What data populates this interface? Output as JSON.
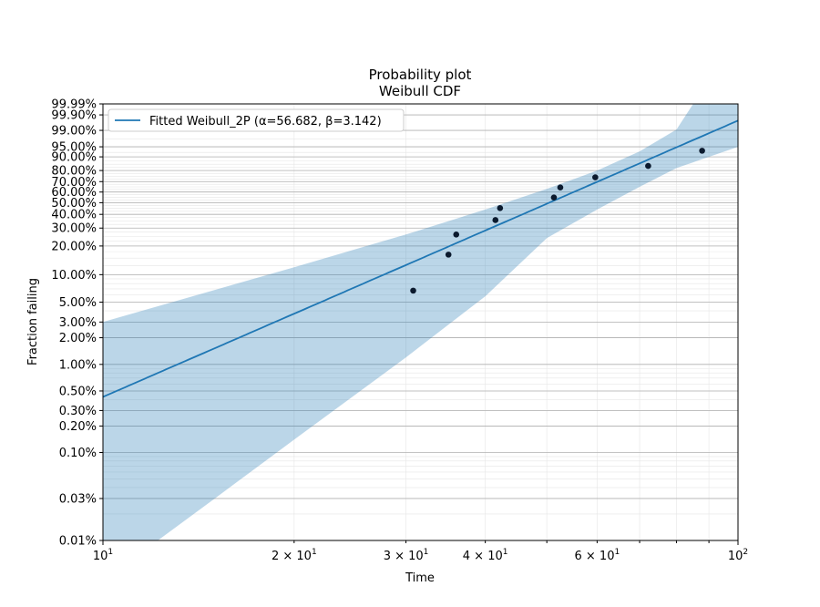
{
  "chart_data": {
    "type": "scatter",
    "title": "Probability plot",
    "subtitle": "Weibull CDF",
    "xlabel": "Time",
    "ylabel": "Fraction failing",
    "x_scale": "log",
    "y_scale": "weibull",
    "xlim": [
      10,
      100
    ],
    "ylim": [
      0.0001,
      0.9999
    ],
    "grid": true,
    "legend_position": "top-left",
    "x_ticks": [
      {
        "value": 10,
        "base": "10",
        "exp": "1"
      },
      {
        "value": 20,
        "base": "2 × 10",
        "exp": "1"
      },
      {
        "value": 30,
        "base": "3 × 10",
        "exp": "1"
      },
      {
        "value": 40,
        "base": "4 × 10",
        "exp": "1"
      },
      {
        "value": 60,
        "base": "6 × 10",
        "exp": "1"
      },
      {
        "value": 100,
        "base": "10",
        "exp": "2"
      }
    ],
    "y_ticks": [
      {
        "value": 0.0001,
        "label": "0.01%"
      },
      {
        "value": 0.0003,
        "label": "0.03%"
      },
      {
        "value": 0.001,
        "label": "0.10%"
      },
      {
        "value": 0.002,
        "label": "0.20%"
      },
      {
        "value": 0.003,
        "label": "0.30%"
      },
      {
        "value": 0.005,
        "label": "0.50%"
      },
      {
        "value": 0.01,
        "label": "1.00%"
      },
      {
        "value": 0.02,
        "label": "2.00%"
      },
      {
        "value": 0.03,
        "label": "3.00%"
      },
      {
        "value": 0.05,
        "label": "5.00%"
      },
      {
        "value": 0.1,
        "label": "10.00%"
      },
      {
        "value": 0.2,
        "label": "20.00%"
      },
      {
        "value": 0.3,
        "label": "30.00%"
      },
      {
        "value": 0.4,
        "label": "40.00%"
      },
      {
        "value": 0.5,
        "label": "50.00%"
      },
      {
        "value": 0.6,
        "label": "60.00%"
      },
      {
        "value": 0.7,
        "label": "70.00%"
      },
      {
        "value": 0.8,
        "label": "80.00%"
      },
      {
        "value": 0.9,
        "label": "90.00%"
      },
      {
        "value": 0.95,
        "label": "95.00%"
      },
      {
        "value": 0.99,
        "label": "99.00%"
      },
      {
        "value": 0.999,
        "label": "99.90%"
      },
      {
        "value": 0.9999,
        "label": "99.99%"
      }
    ],
    "fit": {
      "name": "Fitted Weibull_2P (α=56.682, β=3.142)",
      "alpha": 56.682,
      "beta": 3.142,
      "color": "#1f77b4",
      "band_color": "#1f77b4",
      "band_opacity": 0.3,
      "band_upper": [
        {
          "x": 10,
          "y": 0.03
        },
        {
          "x": 20,
          "y": 0.12
        },
        {
          "x": 30,
          "y": 0.26
        },
        {
          "x": 40,
          "y": 0.44
        },
        {
          "x": 50,
          "y": 0.63
        },
        {
          "x": 60,
          "y": 0.8
        },
        {
          "x": 70,
          "y": 0.93
        },
        {
          "x": 80,
          "y": 0.991
        },
        {
          "x": 85,
          "y": 0.9999
        }
      ],
      "band_lower": [
        {
          "x": 12.2,
          "y": 0.0001
        },
        {
          "x": 15,
          "y": 0.0003
        },
        {
          "x": 20,
          "y": 0.0014
        },
        {
          "x": 30,
          "y": 0.012
        },
        {
          "x": 40,
          "y": 0.058
        },
        {
          "x": 50,
          "y": 0.24
        },
        {
          "x": 60,
          "y": 0.44
        },
        {
          "x": 70,
          "y": 0.65
        },
        {
          "x": 80,
          "y": 0.82
        },
        {
          "x": 100,
          "y": 0.95
        }
      ]
    },
    "points": {
      "color": "#0b1a2e",
      "data": [
        {
          "x": 30.8,
          "y": 0.067
        },
        {
          "x": 35.0,
          "y": 0.163
        },
        {
          "x": 36.0,
          "y": 0.26
        },
        {
          "x": 41.5,
          "y": 0.356
        },
        {
          "x": 42.2,
          "y": 0.452
        },
        {
          "x": 51.3,
          "y": 0.548
        },
        {
          "x": 52.5,
          "y": 0.644
        },
        {
          "x": 59.6,
          "y": 0.74
        },
        {
          "x": 72.2,
          "y": 0.837
        },
        {
          "x": 87.8,
          "y": 0.933
        }
      ]
    }
  }
}
